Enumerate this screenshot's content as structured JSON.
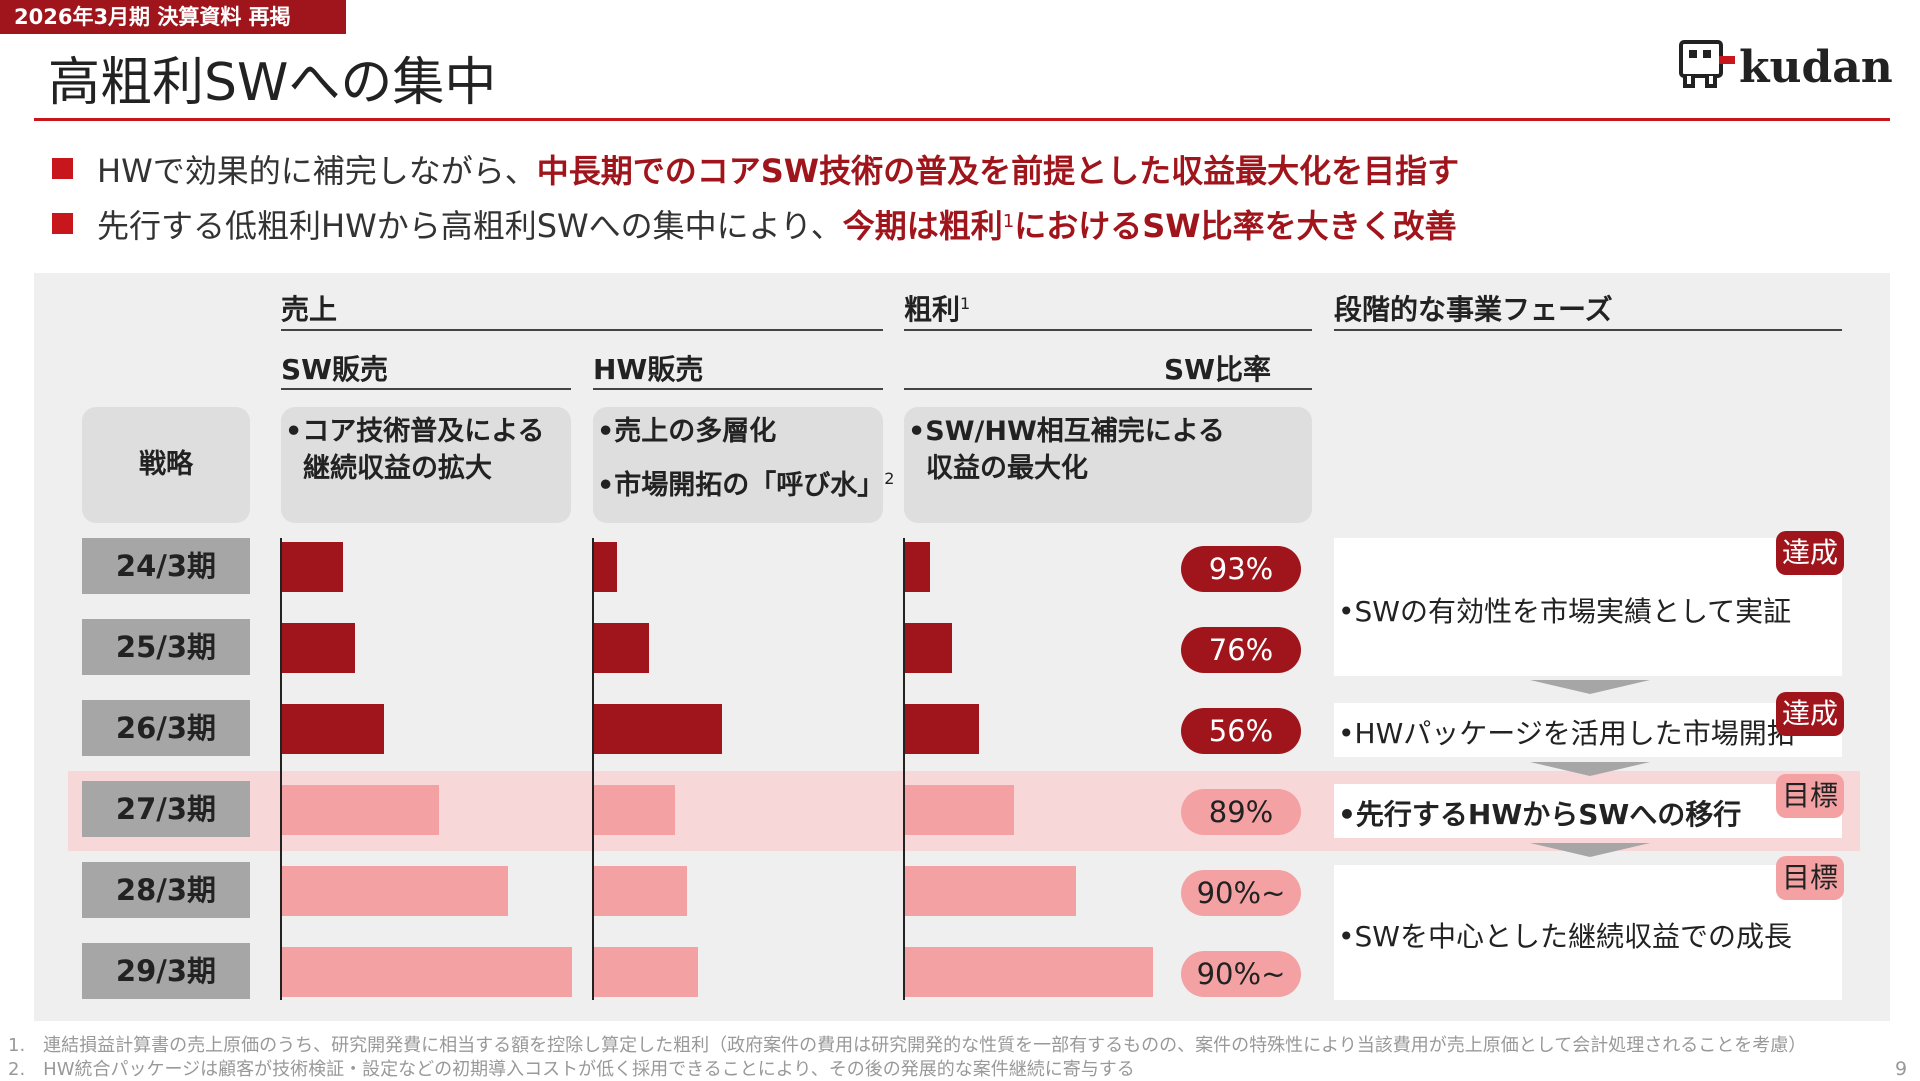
{
  "header": {
    "tag": "2026年3月期 決算資料 再掲",
    "title": "高粗利SWへの集中",
    "logo_text": "kudan"
  },
  "bullets": [
    {
      "plain": "HWで効果的に補完しながら、",
      "emphasis": "中長期でのコアSW技術の普及を前提とした収益最大化を目指す"
    },
    {
      "plain": "先行する低粗利HWから高粗利SWへの集中により、",
      "emphasis": "今期は粗利",
      "sup": "1",
      "emphasis2": "におけるSW比率を大きく改善"
    }
  ],
  "columns": {
    "sales_title": "売上",
    "gross_title": "粗利",
    "gross_sup": "1",
    "phase_title": "段階的な事業フェーズ",
    "sw_sales": "SW販売",
    "hw_sales": "HW販売",
    "sw_ratio": "SW比率"
  },
  "strategy": {
    "label": "戦略",
    "sw": [
      "•コア技術普及による",
      "継続収益の拡大"
    ],
    "hw": [
      "•売上の多層化",
      "•市場開拓の「呼び水」"
    ],
    "hw_sup": "2",
    "gross": [
      "•SW/HW相互補完による",
      "収益の最大化"
    ]
  },
  "periods": [
    "24/3期",
    "25/3期",
    "26/3期",
    "27/3期",
    "28/3期",
    "29/3期"
  ],
  "colors": {
    "actual": "#a0151c",
    "forecast": "#f4a1a4",
    "accent": "#c8161d"
  },
  "chart_data": {
    "type": "bar",
    "categories": [
      "24/3期",
      "25/3期",
      "26/3期",
      "27/3期",
      "28/3期",
      "29/3期"
    ],
    "series": [
      {
        "name": "SW販売",
        "values": [
          21,
          25,
          35,
          54,
          78,
          100
        ]
      },
      {
        "name": "HW販売",
        "values": [
          8,
          19,
          44,
          28,
          32,
          36
        ]
      },
      {
        "name": "粗利",
        "values": [
          10,
          19,
          30,
          44,
          69,
          100
        ]
      }
    ],
    "sw_ratio": [
      "93%",
      "76%",
      "56%",
      "89%",
      "90%~",
      "90%~"
    ],
    "forecast_from_index": 3,
    "scale_max": 100
  },
  "phases": [
    {
      "text": "•SWの有効性を市場実績として実証",
      "badge": "達成"
    },
    {
      "text": "•HWパッケージを活用した市場開拓",
      "badge": "達成"
    },
    {
      "text": "•先行するHWからSWへの移行",
      "badge": "目標"
    },
    {
      "text": "•SWを中心とした継続収益での成長",
      "badge": "目標"
    }
  ],
  "footnotes": [
    "1.　連結損益計算書の売上原価のうち、研究開発費に相当する額を控除し算定した粗利（政府案件の費用は研究開発的な性質を一部有するものの、案件の特殊性により当該費用が売上原価として会計処理されることを考慮）",
    "2.　HW統合パッケージは顧客が技術検証・設定などの初期導入コストが低く採用できることにより、その後の発展的な案件継続に寄与する"
  ],
  "page_number": "9"
}
